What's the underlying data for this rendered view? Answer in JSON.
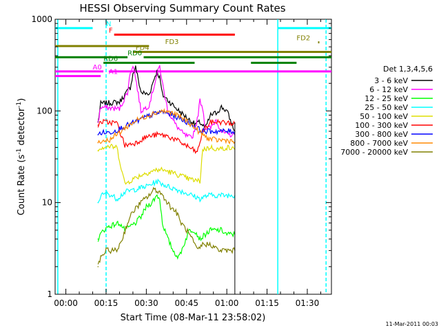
{
  "chart_data": {
    "type": "line",
    "title": "HESSI Observing Summary Count Rates",
    "xlabel": "Start Time (08-Mar-11 23:58:02)",
    "ylabel_main": "Count Rate (s",
    "ylabel_sup1": "-1",
    "ylabel_mid": " detector",
    "ylabel_sup2": "-1",
    "ylabel_end": ")",
    "footer": "11-Mar-2011 00:03",
    "yscale": "log",
    "ylim": [
      1,
      1000
    ],
    "xlim_min": [
      -4,
      99
    ],
    "x_ticks": [
      {
        "m": 0,
        "label": "00:00"
      },
      {
        "m": 15,
        "label": "00:15"
      },
      {
        "m": 30,
        "label": "00:30"
      },
      {
        "m": 45,
        "label": "00:45"
      },
      {
        "m": 60,
        "label": "01:00"
      },
      {
        "m": 75,
        "label": "01:15"
      },
      {
        "m": 90,
        "label": "01:30"
      }
    ],
    "y_ticks": [
      {
        "v": 1,
        "label": "1"
      },
      {
        "v": 10,
        "label": "10"
      },
      {
        "v": 100,
        "label": "100"
      },
      {
        "v": 1000,
        "label": "1000"
      }
    ],
    "legend_title": "Det 1,3,4,5,6",
    "series": [
      {
        "name": "3 - 6 keV",
        "color": "#000000",
        "points": [
          [
            12,
            75
          ],
          [
            13,
            120
          ],
          [
            20,
            125
          ],
          [
            24,
            180
          ],
          [
            25,
            250
          ],
          [
            26,
            300
          ],
          [
            28,
            160
          ],
          [
            31,
            150
          ],
          [
            33,
            230
          ],
          [
            34,
            270
          ],
          [
            35,
            230
          ],
          [
            36,
            150
          ],
          [
            40,
            115
          ],
          [
            43,
            95
          ],
          [
            46,
            80
          ],
          [
            48,
            72
          ],
          [
            50,
            75
          ],
          [
            52,
            65
          ],
          [
            54,
            90
          ],
          [
            56,
            95
          ],
          [
            58,
            110
          ],
          [
            60,
            100
          ],
          [
            62,
            70
          ],
          [
            63,
            60
          ]
        ]
      },
      {
        "name": "6 - 12 keV",
        "color": "#ff00ff",
        "points": [
          [
            12,
            75
          ],
          [
            13,
            110
          ],
          [
            20,
            105
          ],
          [
            23,
            160
          ],
          [
            24,
            260
          ],
          [
            25,
            320
          ],
          [
            26,
            230
          ],
          [
            28,
            100
          ],
          [
            31,
            115
          ],
          [
            34,
            250
          ],
          [
            35,
            310
          ],
          [
            36,
            200
          ],
          [
            38,
            100
          ],
          [
            41,
            70
          ],
          [
            44,
            55
          ],
          [
            47,
            50
          ],
          [
            49,
            80
          ],
          [
            50,
            130
          ],
          [
            51,
            110
          ],
          [
            52,
            65
          ],
          [
            54,
            65
          ],
          [
            56,
            80
          ],
          [
            58,
            60
          ],
          [
            60,
            55
          ],
          [
            63,
            55
          ]
        ]
      },
      {
        "name": "12 - 25 keV",
        "color": "#00ff00",
        "points": [
          [
            12,
            4
          ],
          [
            13,
            4.5
          ],
          [
            14,
            5
          ],
          [
            16,
            5.5
          ],
          [
            20,
            6
          ],
          [
            22,
            5
          ],
          [
            26,
            6
          ],
          [
            28,
            7
          ],
          [
            30,
            9
          ],
          [
            32,
            10
          ],
          [
            34,
            12
          ],
          [
            35,
            11
          ],
          [
            36,
            6
          ],
          [
            38,
            4
          ],
          [
            40,
            3
          ],
          [
            42,
            2.5
          ],
          [
            44,
            3.5
          ],
          [
            46,
            5
          ],
          [
            48,
            5
          ],
          [
            50,
            4
          ],
          [
            52,
            4.5
          ],
          [
            54,
            5
          ],
          [
            56,
            5
          ],
          [
            58,
            5
          ],
          [
            60,
            4.5
          ],
          [
            63,
            4.5
          ]
        ]
      },
      {
        "name": "25 - 50 keV",
        "color": "#00ffff",
        "points": [
          [
            12,
            10
          ],
          [
            13,
            12
          ],
          [
            16,
            12.5
          ],
          [
            19,
            11
          ],
          [
            22,
            13
          ],
          [
            26,
            14
          ],
          [
            30,
            15
          ],
          [
            34,
            17
          ],
          [
            36,
            16
          ],
          [
            38,
            15
          ],
          [
            41,
            14
          ],
          [
            44,
            13
          ],
          [
            47,
            12
          ],
          [
            50,
            11
          ],
          [
            53,
            12
          ],
          [
            57,
            12
          ],
          [
            60,
            12
          ],
          [
            63,
            12
          ]
        ]
      },
      {
        "name": "50 - 100 keV",
        "color": "#dddd00",
        "points": [
          [
            12,
            37
          ],
          [
            13,
            40
          ],
          [
            16,
            41
          ],
          [
            19,
            40
          ],
          [
            22,
            16
          ],
          [
            25,
            18
          ],
          [
            28,
            20
          ],
          [
            32,
            22
          ],
          [
            35,
            23
          ],
          [
            38,
            22
          ],
          [
            42,
            20
          ],
          [
            46,
            18
          ],
          [
            50,
            17
          ],
          [
            51,
            38
          ],
          [
            54,
            40
          ],
          [
            57,
            38
          ],
          [
            60,
            40
          ],
          [
            63,
            38
          ]
        ]
      },
      {
        "name": "100 - 300 keV",
        "color": "#ff0000",
        "points": [
          [
            12,
            70
          ],
          [
            13,
            76
          ],
          [
            16,
            75
          ],
          [
            19,
            74
          ],
          [
            22,
            42
          ],
          [
            26,
            45
          ],
          [
            30,
            52
          ],
          [
            34,
            55
          ],
          [
            37,
            54
          ],
          [
            40,
            50
          ],
          [
            43,
            45
          ],
          [
            46,
            40
          ],
          [
            49,
            35
          ],
          [
            51,
            60
          ],
          [
            54,
            75
          ],
          [
            57,
            76
          ],
          [
            60,
            74
          ],
          [
            63,
            72
          ]
        ]
      },
      {
        "name": "300 - 800 keV",
        "color": "#0000ff",
        "points": [
          [
            12,
            55
          ],
          [
            13,
            58
          ],
          [
            16,
            58
          ],
          [
            19,
            62
          ],
          [
            22,
            68
          ],
          [
            26,
            76
          ],
          [
            30,
            86
          ],
          [
            33,
            93
          ],
          [
            36,
            98
          ],
          [
            39,
            92
          ],
          [
            42,
            84
          ],
          [
            45,
            76
          ],
          [
            48,
            68
          ],
          [
            50,
            62
          ],
          [
            52,
            60
          ],
          [
            55,
            60
          ],
          [
            58,
            60
          ],
          [
            63,
            60
          ]
        ]
      },
      {
        "name": "800 - 7000 keV",
        "color": "#ff8800",
        "points": [
          [
            12,
            45
          ],
          [
            13,
            47
          ],
          [
            16,
            48
          ],
          [
            19,
            55
          ],
          [
            22,
            65
          ],
          [
            26,
            78
          ],
          [
            30,
            88
          ],
          [
            33,
            95
          ],
          [
            36,
            100
          ],
          [
            39,
            96
          ],
          [
            42,
            88
          ],
          [
            45,
            78
          ],
          [
            48,
            66
          ],
          [
            50,
            58
          ],
          [
            53,
            50
          ],
          [
            56,
            48
          ],
          [
            60,
            48
          ],
          [
            63,
            46
          ]
        ]
      },
      {
        "name": "7000 - 20000 keV",
        "color": "#808000",
        "points": [
          [
            12,
            2
          ],
          [
            13,
            2.5
          ],
          [
            15,
            3
          ],
          [
            17,
            3
          ],
          [
            19,
            3
          ],
          [
            21,
            4
          ],
          [
            23,
            6
          ],
          [
            25,
            8
          ],
          [
            28,
            10
          ],
          [
            31,
            12
          ],
          [
            33,
            14
          ],
          [
            35,
            13
          ],
          [
            37,
            11
          ],
          [
            39,
            9
          ],
          [
            41,
            8
          ],
          [
            43,
            6
          ],
          [
            45,
            5
          ],
          [
            47,
            4
          ],
          [
            49,
            3
          ],
          [
            51,
            3.5
          ],
          [
            54,
            3.5
          ],
          [
            57,
            3
          ],
          [
            60,
            3
          ],
          [
            63,
            3
          ]
        ]
      }
    ],
    "flags": [
      {
        "label": "N",
        "color": "#00ffff",
        "y": 800,
        "segments": [
          [
            -4,
            10
          ],
          [
            79,
            99
          ]
        ],
        "label_m": 15
      },
      {
        "label": "F",
        "color": "#ff0000",
        "y": 680,
        "segments": [
          [
            18,
            63
          ]
        ],
        "label_m": 16
      },
      {
        "label": "FD2",
        "color": "#808000",
        "y": 560,
        "segments": [
          [
            94,
            94.5
          ]
        ],
        "label_m": 86
      },
      {
        "label": "FD3",
        "color": "#808000",
        "y": 510,
        "segments": [
          [
            -4,
            31
          ]
        ],
        "label_m": 37
      },
      {
        "label": "FD4",
        "color": "#808000",
        "y": 440,
        "segments": [
          [
            25,
            99
          ]
        ],
        "label_m": 26
      },
      {
        "label": "RD0",
        "color": "#008000",
        "y": 385,
        "segments": [
          [
            -4,
            23
          ],
          [
            29,
            99
          ]
        ],
        "label_m": 23
      },
      {
        "label": "RD6",
        "color": "#008000",
        "y": 335,
        "segments": [
          [
            14,
            48
          ],
          [
            69,
            86
          ]
        ],
        "label_m": 14
      },
      {
        "label": "A0",
        "color": "#ff00ff",
        "y": 270,
        "segments": [
          [
            -4,
            14
          ],
          [
            16,
            99
          ]
        ],
        "label_m": 10
      },
      {
        "label": "A1",
        "color": "#ff00ff",
        "y": 240,
        "segments": [
          [
            -4,
            13
          ]
        ],
        "label_m": 16
      }
    ],
    "vlines": [
      {
        "m": -3,
        "color": "#00ffff",
        "dash": false
      },
      {
        "m": 15,
        "color": "#00ffff",
        "dash": true
      },
      {
        "m": 79,
        "color": "#00ffff",
        "dash": false
      },
      {
        "m": 97,
        "color": "#00ffff",
        "dash": true
      }
    ]
  }
}
